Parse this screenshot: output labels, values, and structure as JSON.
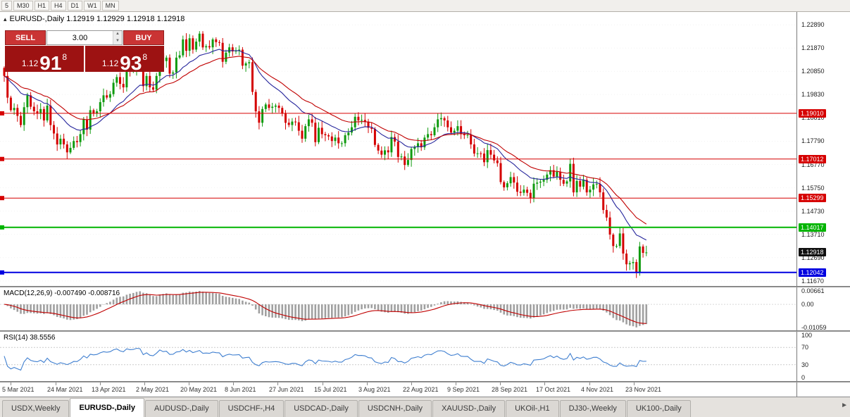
{
  "toolbar": {
    "timeframes": [
      "5",
      "M30",
      "H1",
      "H4",
      "D1",
      "W1",
      "MN"
    ]
  },
  "icons": {
    "volume_up": "▲",
    "volume_down": "▼",
    "tab_scroll_right": "►",
    "chart_header_arrow": "▴"
  },
  "chart": {
    "header": "EURUSD-,Daily  1.12919 1.12929 1.12918 1.12918",
    "trade_panel": {
      "sell_label": "SELL",
      "buy_label": "BUY",
      "volume": "3.00",
      "bid": {
        "small": "1.12",
        "big": "91",
        "sup": "8"
      },
      "ask": {
        "small": "1.12",
        "big": "93",
        "sup": "8"
      }
    },
    "y_ticks": [
      "1.22890",
      "1.21870",
      "1.20850",
      "1.19830",
      "1.18810",
      "1.17790",
      "1.16770",
      "1.15750",
      "1.14730",
      "1.13710",
      "1.12690",
      "1.11670"
    ],
    "hlines": [
      {
        "price": "1.19010",
        "label": "1.19010",
        "color": "#d60000",
        "weight": 1
      },
      {
        "price": "1.17012",
        "label": "1.17012",
        "color": "#d60000",
        "weight": 1
      },
      {
        "price": "1.15299",
        "label": "1.15299",
        "color": "#d60000",
        "weight": 1
      },
      {
        "price": "1.14017",
        "label": "1.14017",
        "color": "#00b400",
        "weight": 2
      },
      {
        "price": "1.12042",
        "label": "1.12042",
        "color": "#0000e0",
        "weight": 2
      }
    ],
    "current_price": {
      "label": "1.12918",
      "price": "1.12918",
      "badge_color": "#101010"
    }
  },
  "macd": {
    "label": "MACD(12,26,9) -0.007490 -0.008716",
    "ticks": [
      "0.00661",
      "0.00",
      "-0.01059"
    ]
  },
  "rsi": {
    "label": "RSI(14) 38.5556",
    "ticks": [
      "100",
      "70",
      "30",
      "0"
    ]
  },
  "dates": [
    "5 Mar 2021",
    "24 Mar 2021",
    "13 Apr 2021",
    "2 May 2021",
    "20 May 2021",
    "8 Jun 2021",
    "27 Jun 2021",
    "15 Jul 2021",
    "3 Aug 2021",
    "22 Aug 2021",
    "9 Sep 2021",
    "28 Sep 2021",
    "17 Oct 2021",
    "4 Nov 2021",
    "23 Nov 2021"
  ],
  "tabs": {
    "items": [
      {
        "label": "USDX,Weekly",
        "active": false
      },
      {
        "label": "EURUSD-,Daily",
        "active": true
      },
      {
        "label": "AUDUSD-,Daily",
        "active": false
      },
      {
        "label": "USDCHF-,H4",
        "active": false
      },
      {
        "label": "USDCAD-,Daily",
        "active": false
      },
      {
        "label": "USDCNH-,Daily",
        "active": false
      },
      {
        "label": "XAUUSD-,Daily",
        "active": false
      },
      {
        "label": "UKOil-,H1",
        "active": false
      },
      {
        "label": "DJ30-,Weekly",
        "active": false
      },
      {
        "label": "UK100-,Daily",
        "active": false
      }
    ]
  },
  "chart_data": {
    "type": "candlestick",
    "symbol": "EURUSD-",
    "timeframe": "Daily",
    "ohlc_header": {
      "open": "1.12919",
      "high": "1.12929",
      "low": "1.12918",
      "close": "1.12918"
    },
    "price_range": [
      1.1145,
      1.2345
    ],
    "x_range_dates": [
      "3 Mar 2021",
      "30 Nov 2021"
    ],
    "closes": [
      1.2065,
      1.197,
      1.1915,
      1.1925,
      1.189,
      1.185,
      1.1928,
      1.198,
      1.193,
      1.191,
      1.19,
      1.192,
      1.187,
      1.1935,
      1.185,
      1.1813,
      1.1765,
      1.179,
      1.1765,
      1.173,
      1.175,
      1.178,
      1.1775,
      1.181,
      1.1875,
      1.183,
      1.1915,
      1.19,
      1.191,
      1.195,
      1.198,
      1.197,
      1.1985,
      1.2035,
      1.206,
      1.203,
      1.2015,
      1.2098,
      1.2085,
      1.209,
      1.2125,
      1.212,
      1.202,
      1.2065,
      1.2015,
      1.2005,
      1.2065,
      1.2165,
      1.213,
      1.2145,
      1.2075,
      1.208,
      1.2145,
      1.2155,
      1.2225,
      1.2175,
      1.223,
      1.218,
      1.2215,
      1.225,
      1.219,
      1.2195,
      1.219,
      1.2225,
      1.2213,
      1.221,
      1.2127,
      1.2167,
      1.219,
      1.2172,
      1.2175,
      1.218,
      1.211,
      1.212,
      1.2125,
      1.1995,
      1.191,
      1.186,
      1.192,
      1.194,
      1.1925,
      1.193,
      1.1935,
      1.1925,
      1.19,
      1.186,
      1.185,
      1.1865,
      1.1862,
      1.1825,
      1.179,
      1.1845,
      1.1875,
      1.186,
      1.1775,
      1.1838,
      1.181,
      1.1805,
      1.18,
      1.178,
      1.1795,
      1.177,
      1.177,
      1.1805,
      1.1817,
      1.184,
      1.1886,
      1.187,
      1.1872,
      1.1865,
      1.1838,
      1.1833,
      1.1763,
      1.1738,
      1.172,
      1.1739,
      1.173,
      1.1797,
      1.1777,
      1.171,
      1.1712,
      1.1675,
      1.1697,
      1.1745,
      1.1755,
      1.177,
      1.1752,
      1.1795,
      1.181,
      1.1805,
      1.184,
      1.1875,
      1.188,
      1.187,
      1.184,
      1.1817,
      1.1825,
      1.1845,
      1.181,
      1.1805,
      1.1807,
      1.1765,
      1.1725,
      1.1726,
      1.1725,
      1.1687,
      1.174,
      1.172,
      1.1695,
      1.1683,
      1.16,
      1.1577,
      1.1595,
      1.1622,
      1.1598,
      1.1558,
      1.1553,
      1.1567,
      1.1553,
      1.153,
      1.1593,
      1.1598,
      1.1602,
      1.161,
      1.1633,
      1.1652,
      1.1624,
      1.1645,
      1.161,
      1.1593,
      1.1603,
      1.168,
      1.1555,
      1.1605,
      1.158,
      1.161,
      1.1555,
      1.1567,
      1.159,
      1.1592,
      1.1555,
      1.1478,
      1.1445,
      1.137,
      1.132,
      1.132,
      1.1375,
      1.1287,
      1.124,
      1.1245,
      1.125,
      1.1205,
      1.1318,
      1.129,
      1.12918
    ],
    "moving_averages": [
      {
        "period": 16,
        "color": "#26269c"
      },
      {
        "period": 28,
        "color": "#c00000"
      }
    ],
    "indicators": [
      {
        "name": "MACD",
        "params": [
          12,
          26,
          9
        ],
        "current": [
          -0.00749,
          -0.008716
        ],
        "scale": [
          -0.0115,
          0.0075
        ]
      },
      {
        "name": "RSI",
        "params": [
          14
        ],
        "current": 38.5556,
        "scale": [
          0,
          100
        ],
        "levels": [
          30,
          70
        ]
      }
    ],
    "colors": {
      "up": "#0f9b0f",
      "down": "#d40000",
      "macd_hist": "#a0a0a0",
      "macd_signal": "#c00000",
      "rsi_line": "#3f7fd0"
    }
  }
}
